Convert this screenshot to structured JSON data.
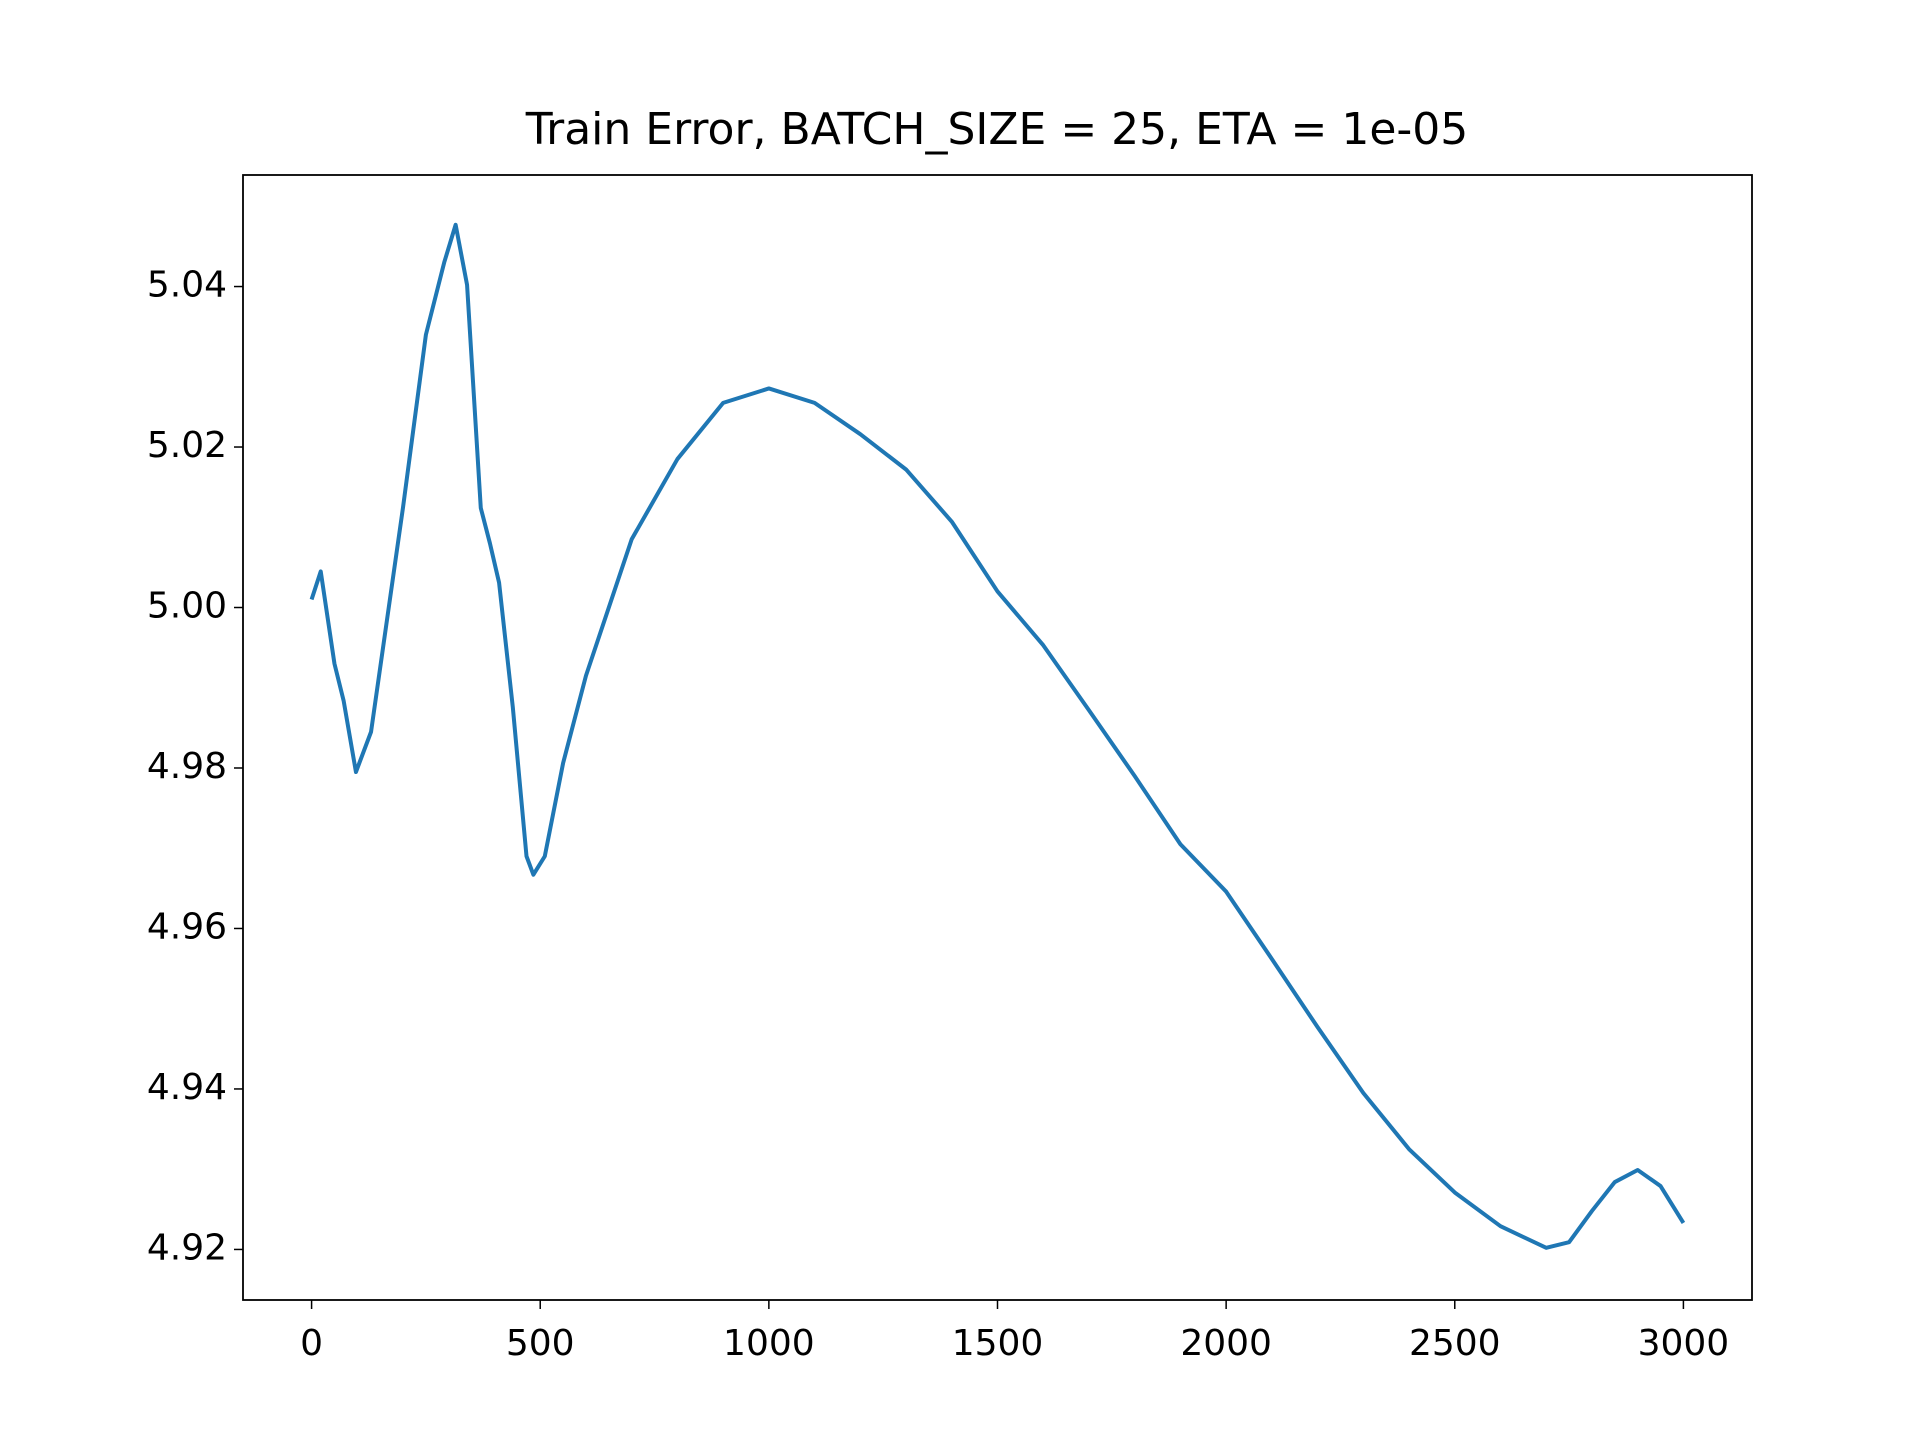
{
  "chart_data": {
    "type": "line",
    "title": "Train Error, BATCH_SIZE = 25, ETA = 1e-05",
    "x": [
      0,
      20,
      50,
      70,
      97,
      130,
      200,
      250,
      290,
      315,
      340,
      370,
      390,
      410,
      440,
      470,
      485,
      510,
      550,
      600,
      700,
      800,
      900,
      1000,
      1100,
      1200,
      1300,
      1400,
      1500,
      1600,
      1700,
      1800,
      1900,
      2000,
      2100,
      2200,
      2300,
      2400,
      2500,
      2600,
      2700,
      2750,
      2800,
      2850,
      2900,
      2950,
      3000
    ],
    "series": [
      {
        "name": "Train Error",
        "color": "#1f77b4",
        "values": [
          5.001,
          5.0045,
          4.993,
          4.9884,
          4.9795,
          4.9845,
          5.0125,
          5.034,
          5.043,
          5.0477,
          5.0402,
          5.0124,
          5.008,
          5.0031,
          4.9876,
          4.969,
          4.9667,
          4.969,
          4.9806,
          4.9915,
          5.0085,
          5.0185,
          5.0255,
          5.0273,
          5.0255,
          5.0216,
          5.0172,
          5.0107,
          5.002,
          4.9953,
          4.9872,
          4.979,
          4.9705,
          4.9646,
          4.9562,
          4.9477,
          4.9395,
          4.9325,
          4.9271,
          4.9229,
          4.9202,
          4.9209,
          4.9248,
          4.9284,
          4.9299,
          4.9279,
          4.9233
        ]
      }
    ],
    "xlim": [
      -150,
      3150
    ],
    "xticks": [
      0,
      500,
      1000,
      1500,
      2000,
      2500,
      3000
    ],
    "ylim": [
      4.9137,
      5.0539
    ],
    "yticks": [
      {
        "value": 4.92,
        "label": "4.92"
      },
      {
        "value": 4.94,
        "label": "4.94"
      },
      {
        "value": 4.96,
        "label": "4.96"
      },
      {
        "value": 4.98,
        "label": "4.98"
      },
      {
        "value": 5.0,
        "label": "5.00"
      },
      {
        "value": 5.02,
        "label": "5.02"
      },
      {
        "value": 5.04,
        "label": "5.04"
      }
    ]
  }
}
